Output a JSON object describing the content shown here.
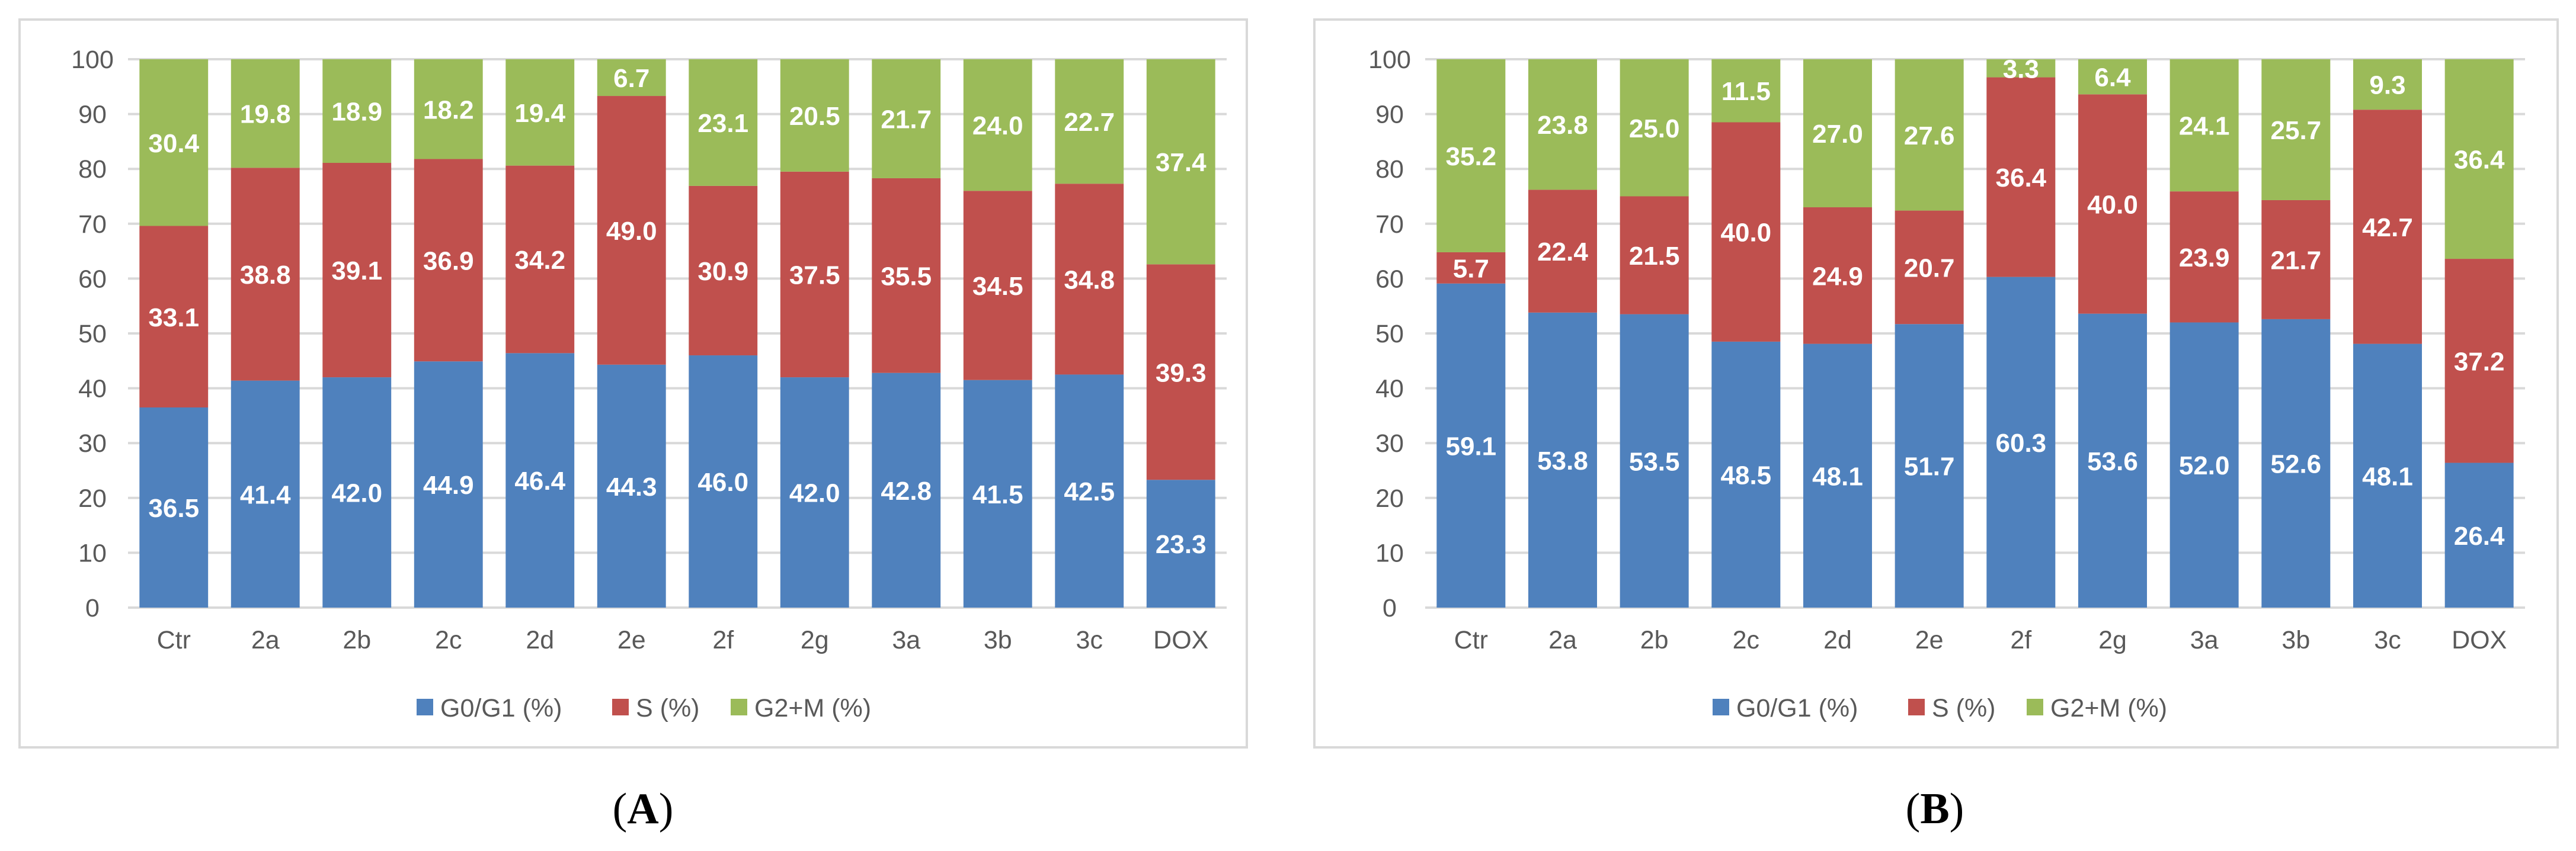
{
  "colors": {
    "G0/G1": "#4f81bd",
    "S": "#c0504d",
    "G2+M": "#9bbb59"
  },
  "legend": [
    {
      "key": "G0/G1",
      "label": "G0/G1  (%)"
    },
    {
      "key": "S",
      "label": "S (%)"
    },
    {
      "key": "G2+M",
      "label": "G2+M (%)"
    }
  ],
  "chart_data": [
    {
      "panel": "A",
      "type": "bar",
      "stacked": true,
      "title": "",
      "xlabel": "",
      "ylabel": "",
      "ylim": [
        0,
        100
      ],
      "yticks": [
        0,
        10,
        20,
        30,
        40,
        50,
        60,
        70,
        80,
        90,
        100
      ],
      "grid": true,
      "legend_position": "bottom",
      "categories": [
        "Ctr",
        "2a",
        "2b",
        "2c",
        "2d",
        "2e",
        "2f",
        "2g",
        "3a",
        "3b",
        "3c",
        "DOX"
      ],
      "series": [
        {
          "name": "G0/G1  (%)",
          "key": "G0/G1",
          "values": [
            "36.5",
            "41.4",
            "42.0",
            "44.9",
            "46.4",
            "44.3",
            "46.0",
            "42.0",
            "42.8",
            "41.5",
            "42.5",
            "23.3"
          ]
        },
        {
          "name": "S (%)",
          "key": "S",
          "values": [
            "33.1",
            "38.8",
            "39.1",
            "36.9",
            "34.2",
            "49.0",
            "30.9",
            "37.5",
            "35.5",
            "34.5",
            "34.8",
            "39.3"
          ]
        },
        {
          "name": "G2+M (%)",
          "key": "G2+M",
          "values": [
            "30.4",
            "19.8",
            "18.9",
            "18.2",
            "19.4",
            "6.7",
            "23.1",
            "20.5",
            "21.7",
            "24.0",
            "22.7",
            "37.4"
          ]
        }
      ],
      "caption": {
        "open": "(",
        "letter": "A",
        "close": ")"
      }
    },
    {
      "panel": "B",
      "type": "bar",
      "stacked": true,
      "title": "",
      "xlabel": "",
      "ylabel": "",
      "ylim": [
        0,
        100
      ],
      "yticks": [
        0,
        10,
        20,
        30,
        40,
        50,
        60,
        70,
        80,
        90,
        100
      ],
      "grid": true,
      "legend_position": "bottom",
      "categories": [
        "Ctr",
        "2a",
        "2b",
        "2c",
        "2d",
        "2e",
        "2f",
        "2g",
        "3a",
        "3b",
        "3c",
        "DOX"
      ],
      "series": [
        {
          "name": "G0/G1  (%)",
          "key": "G0/G1",
          "values": [
            "59.1",
            "53.8",
            "53.5",
            "48.5",
            "48.1",
            "51.7",
            "60.3",
            "53.6",
            "52.0",
            "52.6",
            "48.1",
            "26.4"
          ]
        },
        {
          "name": "S (%)",
          "key": "S",
          "values": [
            "5.7",
            "22.4",
            "21.5",
            "40.0",
            "24.9",
            "20.7",
            "36.4",
            "40.0",
            "23.9",
            "21.7",
            "42.7",
            "37.2"
          ]
        },
        {
          "name": "G2+M (%)",
          "key": "G2+M",
          "values": [
            "35.2",
            "23.8",
            "25.0",
            "11.5",
            "27.0",
            "27.6",
            "3.3",
            "6.4",
            "24.1",
            "25.7",
            "9.3",
            "36.4"
          ]
        }
      ],
      "caption": {
        "open": "(",
        "letter": "B",
        "close": ")"
      }
    }
  ]
}
